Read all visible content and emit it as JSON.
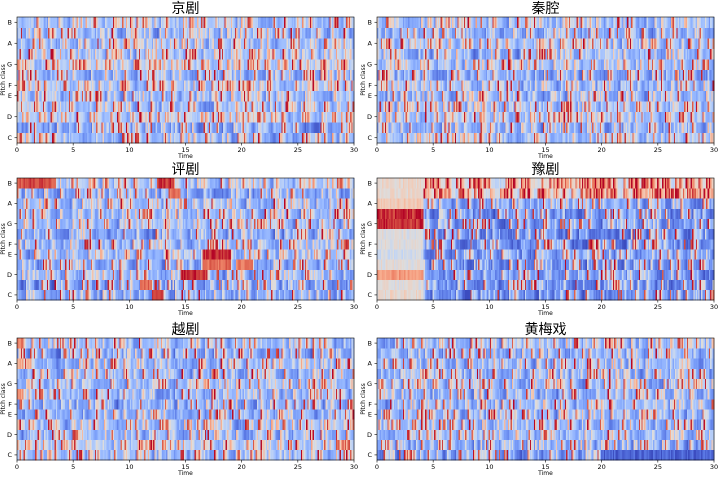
{
  "figure": {
    "colormap": [
      "#3b4cc0",
      "#5977e3",
      "#7b9ff9",
      "#9ebeff",
      "#c0d4f5",
      "#dddcdc",
      "#f2cbb7",
      "#f7ac8e",
      "#ee8468",
      "#d65244",
      "#b40426"
    ]
  },
  "chart_data": [
    {
      "type": "heatmap",
      "title": "京剧",
      "xlabel": "Time",
      "ylabel": "Pitch class",
      "x_ticks": [
        "0",
        "5",
        "10",
        "15",
        "20",
        "25",
        "30"
      ],
      "y_ticks": [
        "C",
        "D",
        "E",
        "F",
        "G",
        "A",
        "B"
      ],
      "xlim": [
        0,
        30
      ],
      "rows": 12,
      "columns": 260,
      "value_range": [
        0,
        1
      ],
      "row_profile": [
        0.4,
        0.3,
        0.5,
        0.4,
        0.35,
        0.45,
        0.35,
        0.55,
        0.45,
        0.4,
        0.35,
        0.45
      ],
      "segments": []
    },
    {
      "type": "heatmap",
      "title": "秦腔",
      "xlabel": "Time",
      "ylabel": "Pitch class",
      "x_ticks": [
        "0",
        "5",
        "10",
        "15",
        "20",
        "25",
        "30"
      ],
      "y_ticks": [
        "C",
        "D",
        "E",
        "F",
        "G",
        "A",
        "B"
      ],
      "xlim": [
        0,
        30
      ],
      "rows": 12,
      "columns": 260,
      "value_range": [
        0,
        1
      ],
      "row_profile": [
        0.45,
        0.3,
        0.45,
        0.35,
        0.35,
        0.35,
        0.3,
        0.4,
        0.35,
        0.45,
        0.3,
        0.4
      ],
      "segments": []
    },
    {
      "type": "heatmap",
      "title": "评剧",
      "xlabel": "Time",
      "ylabel": "Pitch class",
      "x_ticks": [
        "0",
        "5",
        "10",
        "15",
        "20",
        "25",
        "30"
      ],
      "y_ticks": [
        "C",
        "D",
        "E",
        "F",
        "G",
        "A",
        "B"
      ],
      "xlim": [
        0,
        30
      ],
      "rows": 12,
      "columns": 260,
      "value_range": [
        0,
        1
      ],
      "row_profile": [
        0.3,
        0.25,
        0.35,
        0.3,
        0.4,
        0.35,
        0.3,
        0.4,
        0.35,
        0.4,
        0.3,
        0.45
      ],
      "segments": [
        {
          "x0": 0,
          "x1": 3.5,
          "row": 11,
          "value": 0.9
        },
        {
          "x0": 12.5,
          "x1": 14,
          "row": 11,
          "value": 0.95
        },
        {
          "x0": 13.5,
          "x1": 14.5,
          "row": 10,
          "value": 0.85
        },
        {
          "x0": 16.5,
          "x1": 19,
          "row": 4,
          "value": 0.95
        },
        {
          "x0": 16.5,
          "x1": 19,
          "row": 3,
          "value": 0.85
        },
        {
          "x0": 14.5,
          "x1": 17,
          "row": 2,
          "value": 0.95
        },
        {
          "x0": 12,
          "x1": 13,
          "row": 0,
          "value": 0.95
        },
        {
          "x0": 11,
          "x1": 12,
          "row": 1,
          "value": 0.85
        },
        {
          "x0": 19.5,
          "x1": 21,
          "row": 3,
          "value": 0.8
        }
      ]
    },
    {
      "type": "heatmap",
      "title": "豫剧",
      "xlabel": "Time",
      "ylabel": "Pitch class",
      "x_ticks": [
        "0",
        "5",
        "10",
        "15",
        "20",
        "25",
        "30"
      ],
      "y_ticks": [
        "C",
        "D",
        "E",
        "F",
        "G",
        "A",
        "B"
      ],
      "xlim": [
        0,
        30
      ],
      "rows": 12,
      "columns": 260,
      "value_range": [
        0,
        1
      ],
      "row_profile": [
        0.2,
        0.2,
        0.25,
        0.2,
        0.25,
        0.2,
        0.2,
        0.25,
        0.2,
        0.3,
        0.85,
        0.85
      ],
      "segments": [
        {
          "x0": 0,
          "x1": 4.2,
          "row": 11,
          "value": 0.55
        },
        {
          "x0": 0,
          "x1": 4.2,
          "row": 10,
          "value": 0.55
        },
        {
          "x0": 0,
          "x1": 4.2,
          "row": 9,
          "value": 0.6
        },
        {
          "x0": 0,
          "x1": 4.2,
          "row": 8,
          "value": 0.95
        },
        {
          "x0": 0,
          "x1": 4.2,
          "row": 7,
          "value": 0.95
        },
        {
          "x0": 0,
          "x1": 4.2,
          "row": 6,
          "value": 0.5
        },
        {
          "x0": 0,
          "x1": 4.2,
          "row": 5,
          "value": 0.5
        },
        {
          "x0": 0,
          "x1": 4.2,
          "row": 4,
          "value": 0.45
        },
        {
          "x0": 0,
          "x1": 4.2,
          "row": 3,
          "value": 0.5
        },
        {
          "x0": 0,
          "x1": 4.2,
          "row": 2,
          "value": 0.75
        },
        {
          "x0": 0,
          "x1": 4.2,
          "row": 1,
          "value": 0.5
        },
        {
          "x0": 0,
          "x1": 4.2,
          "row": 0,
          "value": 0.55
        }
      ]
    },
    {
      "type": "heatmap",
      "title": "越剧",
      "xlabel": "Time",
      "ylabel": "Pitch class",
      "x_ticks": [
        "0",
        "5",
        "10",
        "15",
        "20",
        "25",
        "30"
      ],
      "y_ticks": [
        "C",
        "D",
        "E",
        "F",
        "G",
        "A",
        "B"
      ],
      "xlim": [
        0,
        30
      ],
      "rows": 12,
      "columns": 260,
      "value_range": [
        0,
        1
      ],
      "row_profile": [
        0.35,
        0.5,
        0.35,
        0.4,
        0.35,
        0.3,
        0.35,
        0.4,
        0.35,
        0.4,
        0.3,
        0.4
      ],
      "segments": [
        {
          "x0": 0,
          "x1": 0.6,
          "row": 11,
          "value": 0.8
        },
        {
          "x0": 0,
          "x1": 0.6,
          "row": 9,
          "value": 0.7
        },
        {
          "x0": 0,
          "x1": 0.6,
          "row": 6,
          "value": 0.75
        }
      ]
    },
    {
      "type": "heatmap",
      "title": "黄梅戏",
      "xlabel": "Time",
      "ylabel": "Pitch class",
      "x_ticks": [
        "0",
        "5",
        "10",
        "15",
        "20",
        "25",
        "30"
      ],
      "y_ticks": [
        "C",
        "D",
        "E",
        "F",
        "G",
        "A",
        "B"
      ],
      "xlim": [
        0,
        30
      ],
      "rows": 12,
      "columns": 260,
      "value_range": [
        0,
        1
      ],
      "row_profile": [
        0.25,
        0.3,
        0.4,
        0.35,
        0.35,
        0.35,
        0.3,
        0.4,
        0.3,
        0.35,
        0.3,
        0.35
      ],
      "segments": [
        {
          "x0": 20,
          "x1": 30,
          "row": 0,
          "value": 0.05
        }
      ]
    }
  ]
}
